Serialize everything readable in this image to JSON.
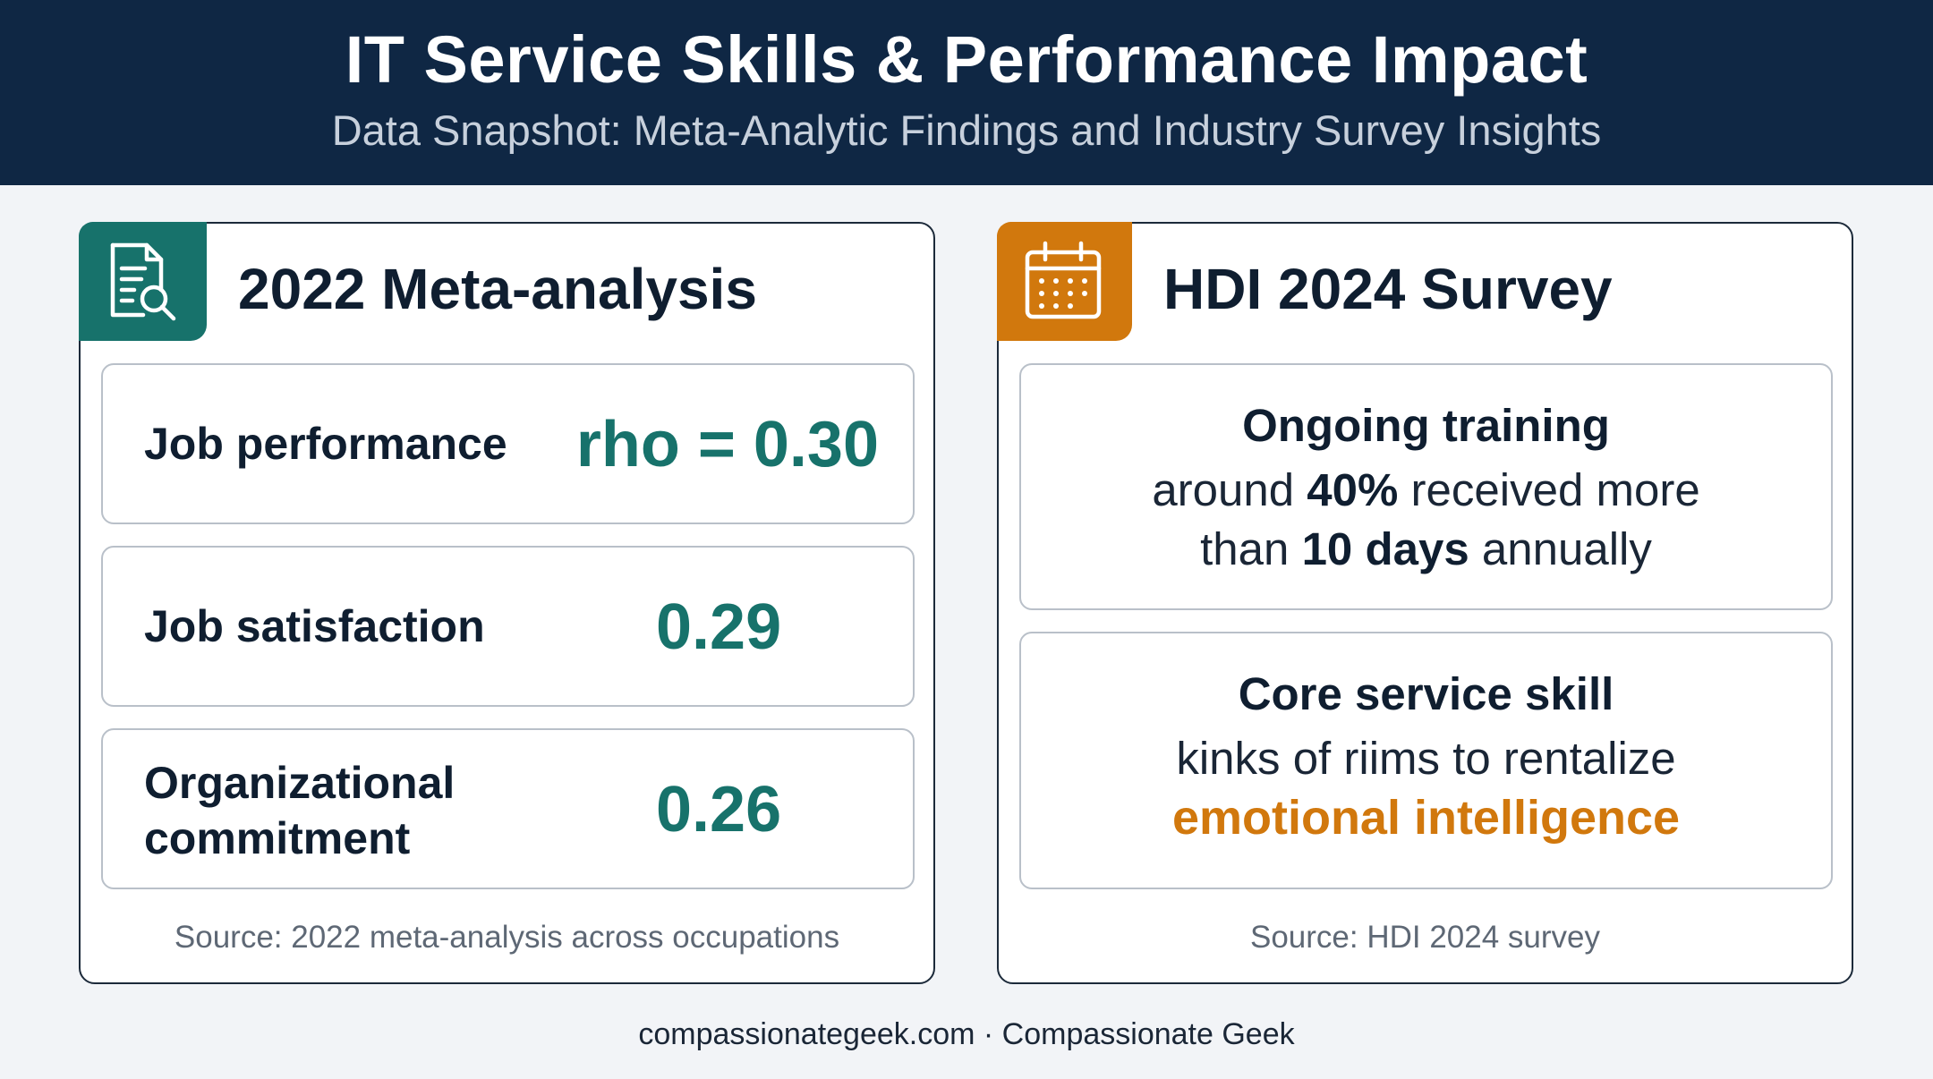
{
  "header": {
    "title": "IT Service Skills & Performance Impact",
    "subtitle": "Data Snapshot: Meta-Analytic Findings and Industry Survey Insights"
  },
  "meta_card": {
    "icon": "document-search-icon",
    "accent_color": "#17726b",
    "title": "2022 Meta-analysis",
    "metrics": [
      {
        "label": "Job performance",
        "value": "rho = 0.30"
      },
      {
        "label": "Job satisfaction",
        "value": "0.29"
      },
      {
        "label_line1": "Organizational",
        "label_line2": "commitment",
        "value": "0.26"
      }
    ],
    "source": "Source: 2022 meta-analysis across occupations"
  },
  "survey_card": {
    "icon": "calendar-icon",
    "accent_color": "#d1780d",
    "title": "HDI 2024 Survey",
    "training": {
      "heading": "Ongoing training",
      "line1_pre": "around ",
      "line1_bold": "40%",
      "line1_post": " received more",
      "line2_pre": "than ",
      "line2_bold": "10 days",
      "line2_post": " annually"
    },
    "skill": {
      "heading": "Core service skill",
      "line1": "kinks of riims to rentalize",
      "highlight": "emotional intelligence"
    },
    "source": "Source: HDI 2024 survey"
  },
  "footer": {
    "text": "compassionategeek.com · Compassionate Geek"
  }
}
